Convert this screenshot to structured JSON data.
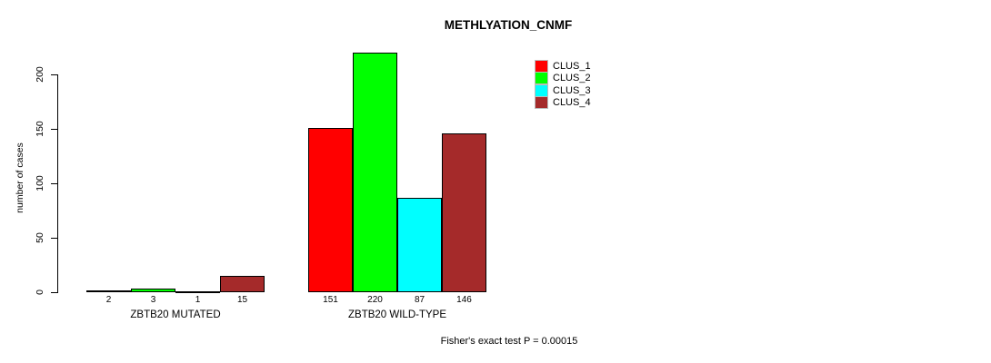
{
  "page": {
    "title": "METHLYATION_CNMF",
    "footnote": "Fisher's exact test P = 0.00015"
  },
  "chart_data": {
    "type": "bar",
    "title": "METHLYATION_CNMF",
    "xlabel": "",
    "ylabel": "number of cases",
    "ylim": [
      0,
      220
    ],
    "y_ticks": [
      0,
      50,
      100,
      150,
      200
    ],
    "grid": false,
    "legend_position": "top-right",
    "bar_value_labels": true,
    "categories": [
      "ZBTB20 MUTATED",
      "ZBTB20 WILD-TYPE"
    ],
    "series": [
      {
        "name": "CLUS_1",
        "color": "#ff0000",
        "values": [
          2,
          151
        ]
      },
      {
        "name": "CLUS_2",
        "color": "#00ff00",
        "values": [
          3,
          220
        ]
      },
      {
        "name": "CLUS_3",
        "color": "#00ffff",
        "values": [
          1,
          87
        ]
      },
      {
        "name": "CLUS_4",
        "color": "#a52a2a",
        "values": [
          15,
          146
        ]
      }
    ],
    "annotation": "Fisher's exact test P = 0.00015"
  }
}
